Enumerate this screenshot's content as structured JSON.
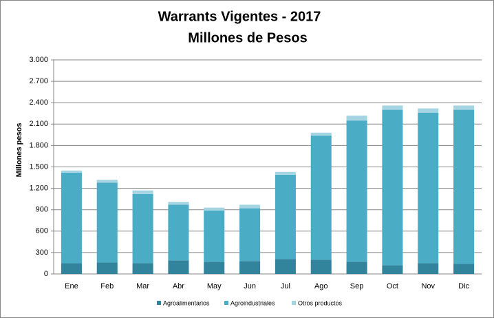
{
  "chart_data": {
    "type": "stacked-bar",
    "title": "Warrants Vigentes - 2017",
    "subtitle": "Millones de Pesos",
    "y_label": "Millones pesos",
    "categories": [
      "Ene",
      "Feb",
      "Mar",
      "Abr",
      "May",
      "Jun",
      "Jul",
      "Ago",
      "Sep",
      "Oct",
      "Nov",
      "Dic"
    ],
    "series": [
      {
        "name": "Agroalimentarios",
        "color": "#31849b",
        "values": [
          150,
          160,
          150,
          190,
          170,
          180,
          210,
          200,
          170,
          120,
          150,
          140
        ]
      },
      {
        "name": "Agroindustriales",
        "color": "#4bacc6",
        "values": [
          1270,
          1120,
          970,
          780,
          720,
          740,
          1180,
          1740,
          1980,
          2180,
          2110,
          2160
        ]
      },
      {
        "name": "Otros productos",
        "color": "#a5d5e2",
        "values": [
          30,
          40,
          50,
          40,
          40,
          50,
          40,
          40,
          70,
          60,
          60,
          60
        ]
      }
    ],
    "ylim": [
      0,
      3000
    ],
    "yticks": [
      0,
      300,
      600,
      900,
      {
        "value": 1200,
        "label": "1.200"
      },
      {
        "value": 1500,
        "label": "1.500"
      },
      {
        "value": 1800,
        "label": "1.800"
      },
      {
        "value": 2100,
        "label": "2.100"
      },
      {
        "value": 2400,
        "label": "2.400"
      },
      {
        "value": 2700,
        "label": "2.700"
      },
      {
        "value": 3000,
        "label": "3.000"
      }
    ],
    "grid": true,
    "legend": "bottom"
  }
}
